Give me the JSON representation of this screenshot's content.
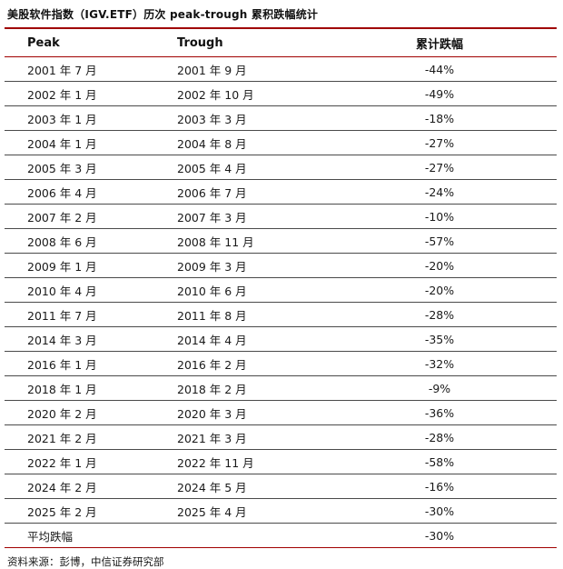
{
  "title": "美股软件指数（IGV.ETF）历次 peak-trough 累积跌幅统计",
  "colors": {
    "accent_red": "#a00000",
    "row_line": "#4a4a4a",
    "text": "#1a1a1a"
  },
  "table": {
    "columns": [
      "Peak",
      "Trough",
      "累计跌幅"
    ],
    "rows": [
      {
        "peak": "2001 年 7 月",
        "trough": "2001 年 9 月",
        "drawdown": "-44%"
      },
      {
        "peak": "2002 年 1 月",
        "trough": "2002 年 10 月",
        "drawdown": "-49%"
      },
      {
        "peak": "2003 年 1 月",
        "trough": "2003 年 3 月",
        "drawdown": "-18%"
      },
      {
        "peak": "2004 年 1 月",
        "trough": "2004 年 8 月",
        "drawdown": "-27%"
      },
      {
        "peak": "2005 年 3 月",
        "trough": "2005 年 4 月",
        "drawdown": "-27%"
      },
      {
        "peak": "2006 年 4 月",
        "trough": "2006 年 7 月",
        "drawdown": "-24%"
      },
      {
        "peak": "2007 年 2 月",
        "trough": "2007 年 3 月",
        "drawdown": "-10%"
      },
      {
        "peak": "2008 年 6 月",
        "trough": "2008 年 11 月",
        "drawdown": "-57%"
      },
      {
        "peak": "2009 年 1 月",
        "trough": "2009 年 3 月",
        "drawdown": "-20%"
      },
      {
        "peak": "2010 年 4 月",
        "trough": "2010 年 6 月",
        "drawdown": "-20%"
      },
      {
        "peak": "2011 年 7 月",
        "trough": "2011 年 8 月",
        "drawdown": "-28%"
      },
      {
        "peak": "2014 年 3 月",
        "trough": "2014 年 4 月",
        "drawdown": "-35%"
      },
      {
        "peak": "2016 年 1 月",
        "trough": "2016 年 2 月",
        "drawdown": "-32%"
      },
      {
        "peak": "2018 年 1 月",
        "trough": "2018 年 2 月",
        "drawdown": "-9%"
      },
      {
        "peak": "2020 年 2 月",
        "trough": "2020 年 3 月",
        "drawdown": "-36%"
      },
      {
        "peak": "2021 年 2 月",
        "trough": "2021 年 3 月",
        "drawdown": "-28%"
      },
      {
        "peak": "2022 年 1 月",
        "trough": "2022 年 11 月",
        "drawdown": "-58%"
      },
      {
        "peak": "2024 年 2 月",
        "trough": "2024 年 5 月",
        "drawdown": "-16%"
      },
      {
        "peak": "2025 年 2 月",
        "trough": "2025 年 4 月",
        "drawdown": "-30%"
      },
      {
        "peak": "平均跌幅",
        "trough": "",
        "drawdown": "-30%"
      }
    ]
  },
  "footer": {
    "source_label": "资料来源：彭博，中信证券研究部"
  }
}
